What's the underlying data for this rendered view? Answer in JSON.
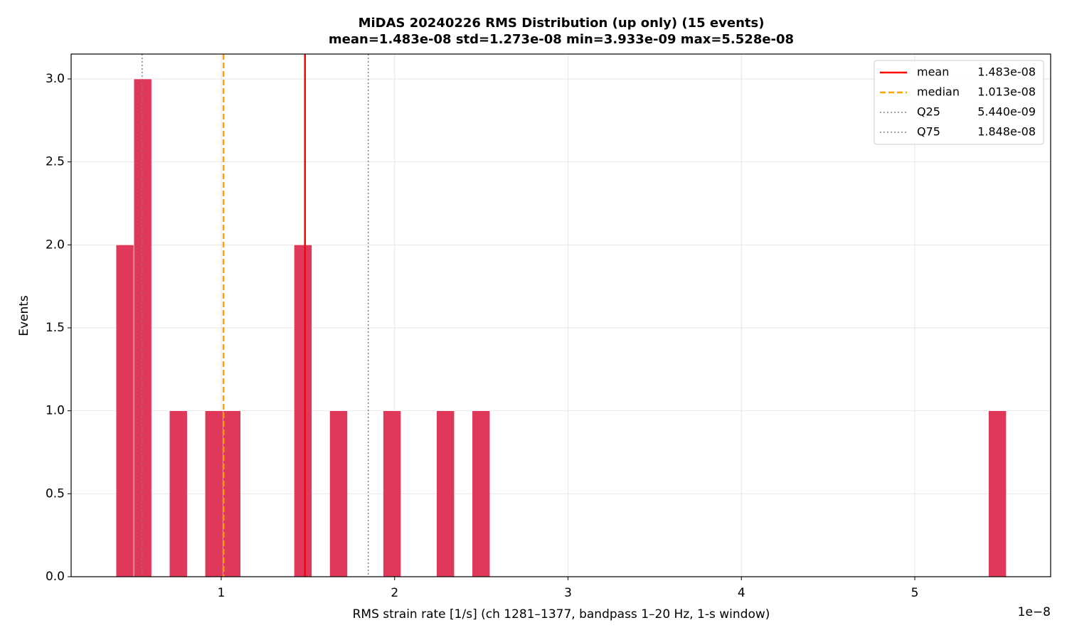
{
  "chart_data": {
    "type": "histogram",
    "title": "MiDAS 20240226  RMS Distribution  (up only)  (15 events)",
    "subtitle": "mean=1.483e-08  std=1.273e-08  min=3.933e-09  max=5.528e-08",
    "x_label": "RMS strain rate [1/s]  (ch 1281–1377, bandpass 1–20 Hz, 1-s window)",
    "y_label": "Events",
    "x_offset_label": "1e−8",
    "bins": [
      0.3933,
      0.496,
      0.5987,
      0.7014,
      0.8041,
      0.9068,
      1.0095,
      1.1122,
      1.2149,
      1.3175,
      1.4202,
      1.5229,
      1.6256,
      1.7283,
      1.831,
      1.9337,
      2.0364,
      2.1391,
      2.2418,
      2.3445,
      2.4472,
      2.5499,
      2.6526,
      2.7553,
      2.858,
      2.9607,
      3.0633,
      3.166,
      3.2687,
      3.3714,
      3.4741,
      3.5768,
      3.6795,
      3.7822,
      3.8849,
      3.9876,
      4.0903,
      4.193,
      4.2957,
      4.3984,
      4.5011,
      4.6038,
      4.7064,
      4.8091,
      4.9118,
      5.0145,
      5.1172,
      5.2199,
      5.3226,
      5.4253,
      5.528
    ],
    "values": [
      2,
      3,
      0,
      1,
      0,
      1,
      1,
      0,
      0,
      0,
      2,
      0,
      1,
      0,
      0,
      1,
      0,
      0,
      1,
      0,
      1,
      0,
      0,
      0,
      0,
      0,
      0,
      0,
      0,
      0,
      0,
      0,
      0,
      0,
      0,
      0,
      0,
      0,
      0,
      0,
      0,
      0,
      0,
      0,
      0,
      0,
      0,
      0,
      0,
      1
    ],
    "color": "#e0385a",
    "xlim": [
      0.1344,
      5.7836
    ],
    "ylim": [
      0,
      3.15
    ],
    "xticks": [
      1,
      2,
      3,
      4,
      5
    ],
    "yticks": [
      {
        "value": 0,
        "label": "0.0"
      },
      {
        "value": 0.5,
        "label": "0.5"
      },
      {
        "value": 1,
        "label": "1.0"
      },
      {
        "value": 1.5,
        "label": "1.5"
      },
      {
        "value": 2,
        "label": "2.0"
      },
      {
        "value": 2.5,
        "label": "2.5"
      },
      {
        "value": 3,
        "label": "3.0"
      }
    ],
    "grid": true,
    "legend": "upper right",
    "lines": [
      {
        "name": "mean",
        "label": "1.483e-08",
        "value": 1.483,
        "color": "#ff0000",
        "style": "solid"
      },
      {
        "name": "median",
        "label": "1.013e-08",
        "value": 1.013,
        "color": "#ffa500",
        "style": "dashed"
      },
      {
        "name": "Q25",
        "label": "5.440e-09",
        "value": 0.544,
        "color": "#808080",
        "style": "dotted"
      },
      {
        "name": "Q75",
        "label": "1.848e-08",
        "value": 1.848,
        "color": "#808080",
        "style": "dotted"
      }
    ]
  }
}
